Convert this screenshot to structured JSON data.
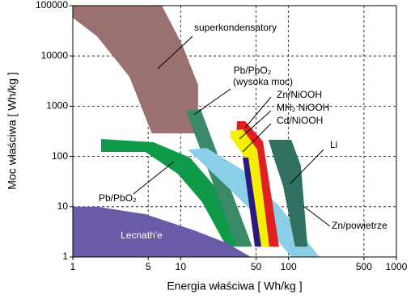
{
  "chart_data": {
    "type": "region",
    "x_label": "Energia właściwa [ Wh/kg ]",
    "y_label": "Moc właściwa [ Wh/kg ]",
    "xscale": "log",
    "yscale": "log",
    "grid": true,
    "xlim": [
      1,
      1000
    ],
    "ylim": [
      1,
      100000
    ],
    "xticks": [
      1,
      5,
      10,
      50,
      100,
      500,
      1000
    ],
    "yticks": [
      1,
      10,
      100,
      1000,
      10000,
      100000
    ],
    "series": [
      {
        "color": "#9b7070",
        "x": [
          1,
          6.7,
          10.3,
          14.5,
          14.5,
          5.4,
          3.35,
          1.68,
          1
        ],
        "y": [
          100000,
          100000,
          16900,
          2650,
          288,
          288,
          3850,
          24500,
          57400
        ]
      },
      {
        "color": "#0f9a4a",
        "x": [
          1.83,
          5.6,
          12.2,
          20.5,
          31.6,
          37.6,
          26.6,
          15.8,
          9.4,
          4.7,
          1.83
        ],
        "y": [
          222,
          192,
          95,
          26,
          4.9,
          1.6,
          1.6,
          12.4,
          45,
          123,
          123
        ]
      },
      {
        "color": "#3a8a6a",
        "x": [
          11.2,
          15.3,
          46,
          33
        ],
        "y": [
          813,
          875,
          1.6,
          1.6
        ]
      },
      {
        "color": "#8ccfe8",
        "x": [
          11.6,
          17.3,
          37.6,
          81.7,
          194,
          106,
          53,
          26.6
        ],
        "y": [
          137,
          148,
          54,
          10.3,
          1,
          1,
          5.9,
          26
        ]
      },
      {
        "color": "#e02020",
        "x": [
          33.3,
          39.6,
          57.9,
          81.7,
          63,
          44.7,
          33
        ],
        "y": [
          502,
          502,
          199,
          1.6,
          1.6,
          137,
          347
        ]
      },
      {
        "color": "#f5f000",
        "x": [
          29,
          37.6,
          51.3,
          66.4,
          51.3,
          39.6,
          29
        ],
        "y": [
          322,
          347,
          137,
          1.6,
          1.6,
          95,
          240
        ]
      },
      {
        "color": "#2a1a80",
        "x": [
          37.6,
          42.4,
          55.9,
          48.7
        ],
        "y": [
          95,
          95,
          1.6,
          1.6
        ]
      },
      {
        "color": "#2f7060",
        "x": [
          65.3,
          106,
          130,
          150,
          115,
          89,
          75
        ],
        "y": [
          214,
          214,
          66,
          1.6,
          1.6,
          26,
          79
        ]
      },
      {
        "color": "#6a5aa8",
        "x": [
          1,
          1.68,
          4.7,
          13.3,
          26.6,
          44.7,
          1
        ],
        "y": [
          10,
          10,
          7.1,
          3.4,
          1.9,
          1,
          1
        ]
      }
    ],
    "annotations": [
      "superkondensatory",
      "Pb/PbO₂",
      "(wysoka moc)",
      "Zn/NiOOH",
      "MH₂ NiOOH",
      "Cd/NiOOH",
      "Li",
      "Zn/powietrze",
      "Pb/PbO₂",
      "Lecnath'e"
    ]
  }
}
